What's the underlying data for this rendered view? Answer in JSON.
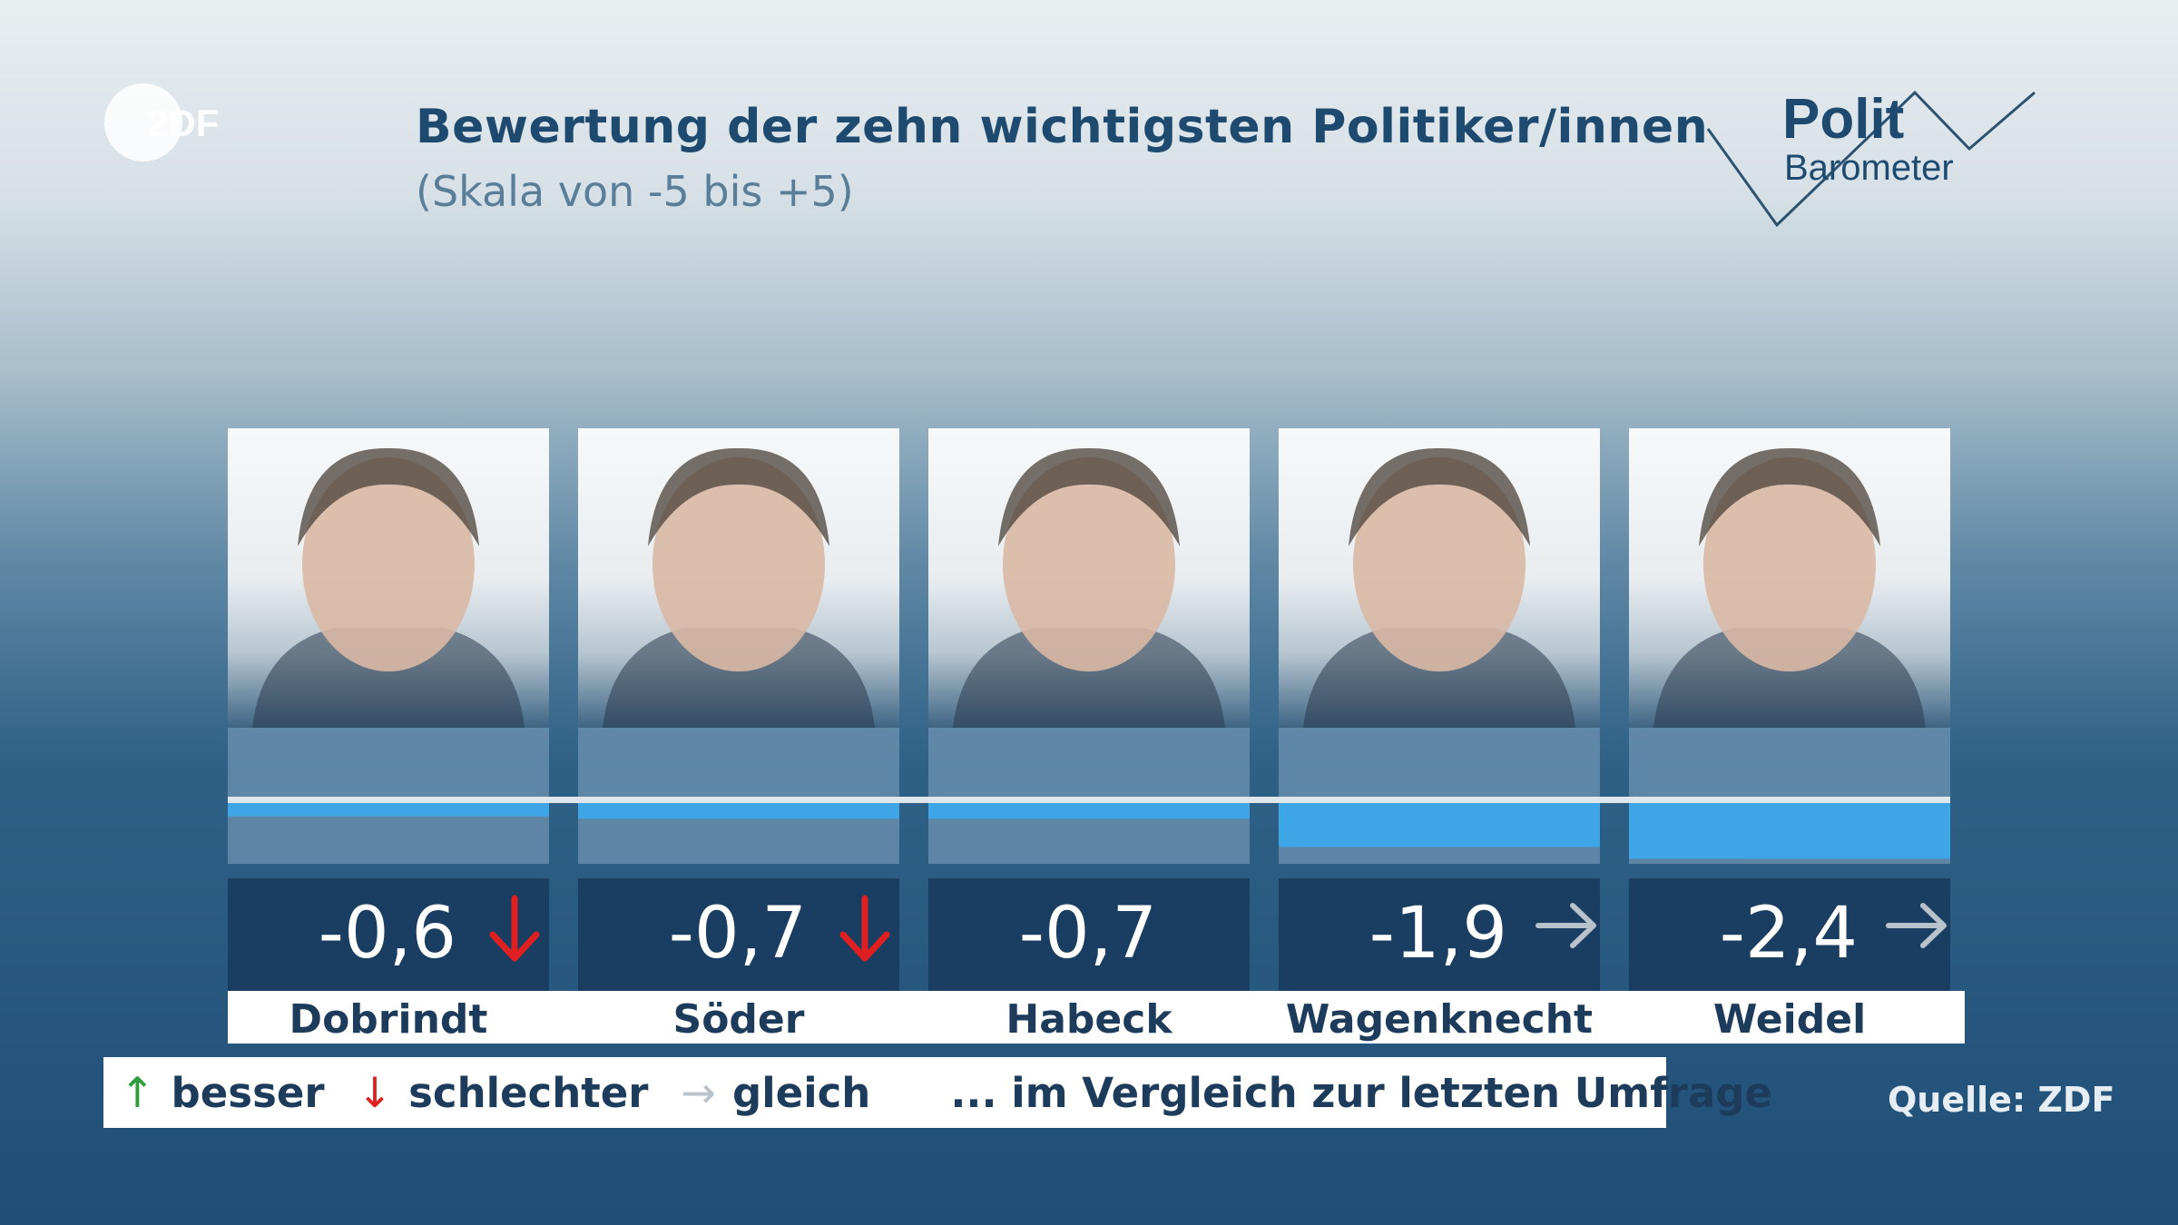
{
  "header": {
    "logo_text": "2DF",
    "title": "Bewertung der zehn wichtigsten Politiker/innen",
    "subtitle": "(Skala von -5 bis +5)",
    "brand_line1": "Polit",
    "brand_line2": "Barometer"
  },
  "colors": {
    "bar": "#3ea6e6",
    "value_panel": "#1a3e62",
    "up_arrow": "#2e9e3c",
    "down_arrow": "#e02020",
    "same_arrow": "#b8c2ca"
  },
  "chart_data": {
    "type": "bar",
    "title": "Bewertung der zehn wichtigsten Politiker/innen",
    "subtitle": "(Skala von -5 bis +5)",
    "ylim": [
      -5,
      5
    ],
    "categories": [
      "Dobrindt",
      "Söder",
      "Habeck",
      "Wagenknecht",
      "Weidel"
    ],
    "values": [
      -0.6,
      -0.7,
      -0.7,
      -1.9,
      -2.4
    ],
    "value_labels": [
      "-0,6",
      "-0,7",
      "-0,7",
      "-1,9",
      "-2,4"
    ],
    "trend": [
      "down",
      "down",
      "none",
      "same",
      "same"
    ]
  },
  "legend": {
    "up_symbol": "↑",
    "up_label": "besser",
    "down_symbol": "↓",
    "down_label": "schlechter",
    "same_symbol": "→",
    "same_label": "gleich",
    "note": "... im Vergleich zur letzten Umfrage"
  },
  "source": "Quelle: ZDF"
}
